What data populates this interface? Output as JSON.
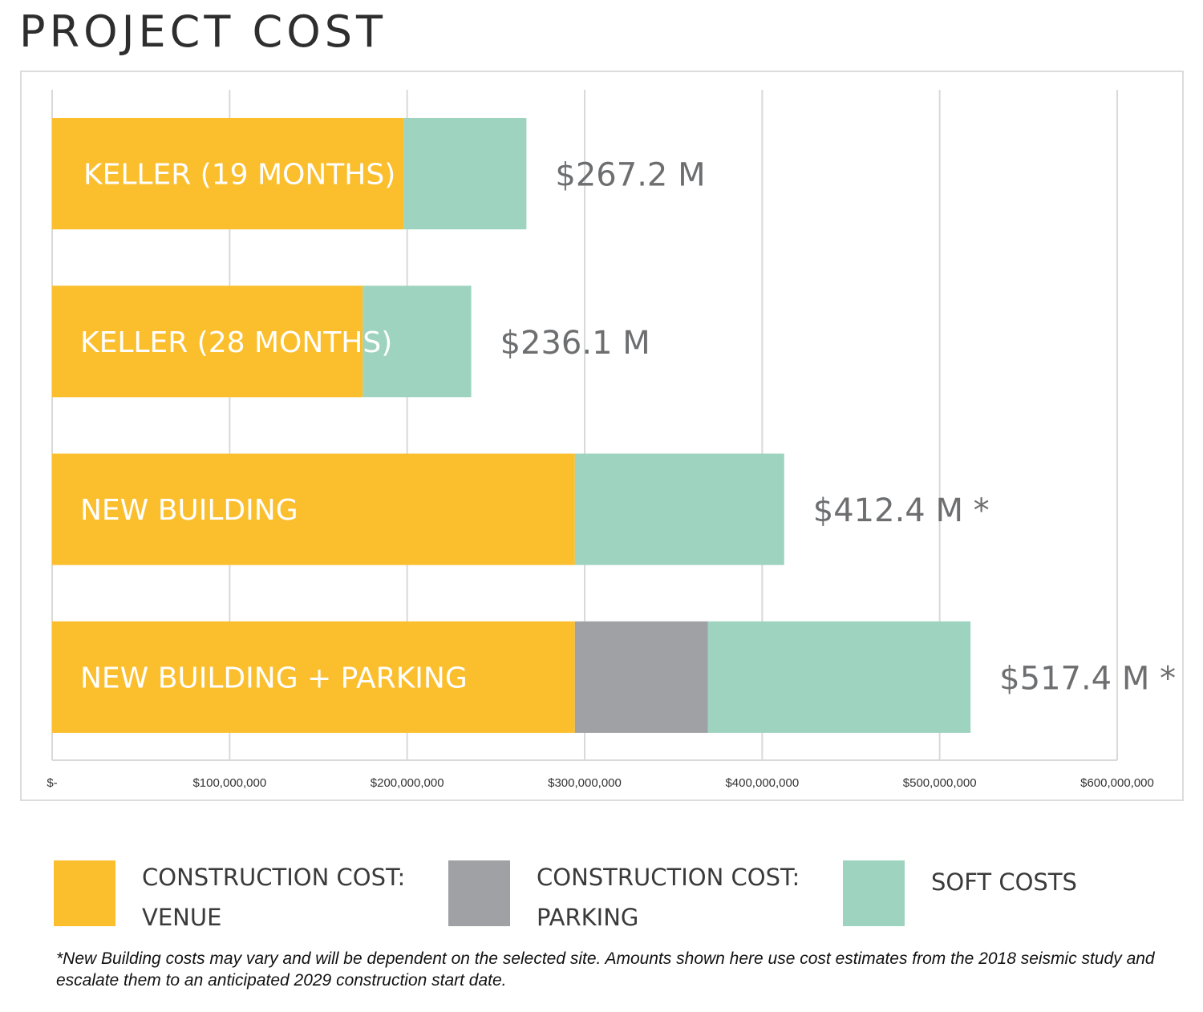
{
  "title": "PROJECT COST",
  "chart_data": {
    "type": "bar",
    "orientation": "horizontal",
    "stacked": true,
    "title": "PROJECT COST",
    "categories": [
      "KELLER (19 MONTHS)",
      "KELLER (28 MONTHS)",
      "NEW BUILDING",
      "NEW BUILDING + PARKING"
    ],
    "series": [
      {
        "name": "CONSTRUCTION COST: VENUE",
        "color": "#fbbf2e",
        "values": [
          198000000,
          175000000,
          294500000,
          294500000
        ]
      },
      {
        "name": "CONSTRUCTION COST: PARKING",
        "color": "#a0a1a5",
        "values": [
          0,
          0,
          0,
          75000000
        ]
      },
      {
        "name": "SOFT COSTS",
        "color": "#9ed4bf",
        "values": [
          69200000,
          61100000,
          117900000,
          147900000
        ]
      }
    ],
    "totals": [
      267200000,
      236100000,
      412400000,
      517400000
    ],
    "total_labels": [
      "$267.2 M",
      "$236.1 M",
      "$412.4 M *",
      "$517.4 M *"
    ],
    "xlim": [
      0,
      600000000
    ],
    "x_ticks": [
      0,
      100000000,
      200000000,
      300000000,
      400000000,
      500000000,
      600000000
    ],
    "x_tick_labels": [
      "$-",
      "$100,000,000",
      "$200,000,000",
      "$300,000,000",
      "$400,000,000",
      "$500,000,000",
      "$600,000,000"
    ],
    "xlabel": "",
    "ylabel": "",
    "grid": true,
    "legend_position": "bottom"
  },
  "legend": [
    {
      "line1": "CONSTRUCTION COST:",
      "line2": "VENUE",
      "color": "#fbbf2e"
    },
    {
      "line1": "CONSTRUCTION COST:",
      "line2": "PARKING",
      "color": "#a0a1a5"
    },
    {
      "line1": "SOFT COSTS",
      "line2": "",
      "color": "#9ed4bf"
    }
  ],
  "footnote": "*New Building costs may vary and will be dependent on the selected site. Amounts shown here use cost estimates from the 2018 seismic study and escalate them to an anticipated 2029 construction start date."
}
